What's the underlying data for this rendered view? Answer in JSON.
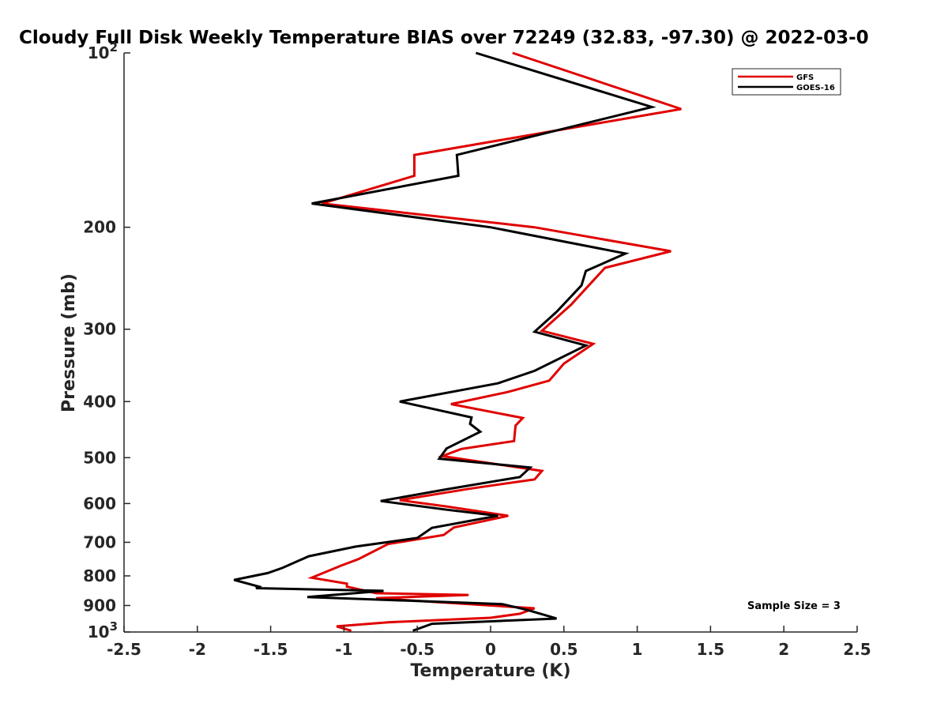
{
  "chart_data": {
    "type": "line",
    "title": "Cloudy Full Disk Weekly Temperature BIAS over 72249 (32.83, -97.30) @ 2022-03-0",
    "xlabel": "Temperature (K)",
    "ylabel": "Pressure (mb)",
    "xlim": [
      -2.5,
      2.5
    ],
    "ylim": [
      1000,
      100
    ],
    "y_scale": "log",
    "y_reversed": true,
    "x_ticks": [
      "-2.5",
      "-2",
      "-1.5",
      "-1",
      "-0.5",
      "0",
      "0.5",
      "1",
      "1.5",
      "2",
      "2.5"
    ],
    "y_ticks": [
      {
        "value": 100,
        "base": "10",
        "exp": "2"
      },
      {
        "value": 200,
        "base": "200",
        "exp": ""
      },
      {
        "value": 300,
        "base": "300",
        "exp": ""
      },
      {
        "value": 400,
        "base": "400",
        "exp": ""
      },
      {
        "value": 500,
        "base": "500",
        "exp": ""
      },
      {
        "value": 600,
        "base": "600",
        "exp": ""
      },
      {
        "value": 700,
        "base": "700",
        "exp": ""
      },
      {
        "value": 800,
        "base": "800",
        "exp": ""
      },
      {
        "value": 900,
        "base": "900",
        "exp": ""
      },
      {
        "value": 1000,
        "base": "10",
        "exp": "3"
      }
    ],
    "grid": false,
    "legend_position": "top-right",
    "annotation": "Sample Size = 3",
    "series": [
      {
        "name": "GFS",
        "color": "#e00000",
        "points": [
          [
            0.15,
            100
          ],
          [
            1.3,
            125
          ],
          [
            -0.52,
            150
          ],
          [
            -0.52,
            163
          ],
          [
            -1.15,
            182
          ],
          [
            0.3,
            200
          ],
          [
            1.23,
            220
          ],
          [
            0.78,
            235
          ],
          [
            0.67,
            252
          ],
          [
            0.55,
            272
          ],
          [
            0.35,
            302
          ],
          [
            0.7,
            318
          ],
          [
            0.5,
            344
          ],
          [
            0.4,
            368
          ],
          [
            0.12,
            385
          ],
          [
            -0.27,
            404
          ],
          [
            0.22,
            427
          ],
          [
            0.17,
            440
          ],
          [
            0.16,
            468
          ],
          [
            -0.2,
            483
          ],
          [
            -0.33,
            497
          ],
          [
            0.35,
            527
          ],
          [
            0.3,
            545
          ],
          [
            -0.15,
            566
          ],
          [
            -0.62,
            592
          ],
          [
            -0.3,
            607
          ],
          [
            0.12,
            630
          ],
          [
            -0.25,
            660
          ],
          [
            -0.32,
            680
          ],
          [
            -0.7,
            705
          ],
          [
            -0.9,
            748
          ],
          [
            -1.02,
            768
          ],
          [
            -1.22,
            806
          ],
          [
            -0.98,
            825
          ],
          [
            -0.98,
            835
          ],
          [
            -0.78,
            857
          ],
          [
            -0.15,
            863
          ],
          [
            -0.78,
            874
          ],
          [
            -0.42,
            886
          ],
          [
            0.3,
            910
          ],
          [
            0.2,
            930
          ],
          [
            0.0,
            945
          ],
          [
            -0.7,
            962
          ],
          [
            -1.05,
            978
          ],
          [
            -0.95,
            995
          ]
        ]
      },
      {
        "name": "GOES-16",
        "color": "#000000",
        "points": [
          [
            -0.1,
            100
          ],
          [
            1.1,
            124
          ],
          [
            -0.23,
            150
          ],
          [
            -0.22,
            163
          ],
          [
            -1.22,
            182
          ],
          [
            0.0,
            200
          ],
          [
            0.92,
            222
          ],
          [
            0.65,
            238
          ],
          [
            0.62,
            252
          ],
          [
            0.45,
            280
          ],
          [
            0.3,
            303
          ],
          [
            0.65,
            320
          ],
          [
            0.3,
            354
          ],
          [
            0.05,
            372
          ],
          [
            -0.62,
            400
          ],
          [
            -0.13,
            426
          ],
          [
            -0.14,
            437
          ],
          [
            -0.07,
            451
          ],
          [
            -0.3,
            482
          ],
          [
            -0.35,
            502
          ],
          [
            0.27,
            520
          ],
          [
            0.2,
            540
          ],
          [
            -0.3,
            567
          ],
          [
            -0.75,
            594
          ],
          [
            -0.3,
            615
          ],
          [
            0.05,
            630
          ],
          [
            -0.4,
            661
          ],
          [
            -0.5,
            688
          ],
          [
            -0.92,
            712
          ],
          [
            -1.24,
            740
          ],
          [
            -1.42,
            775
          ],
          [
            -1.52,
            791
          ],
          [
            -1.75,
            813
          ],
          [
            -1.58,
            835
          ],
          [
            -1.6,
            840
          ],
          [
            -0.73,
            849
          ],
          [
            -1.25,
            870
          ],
          [
            0.08,
            895
          ],
          [
            0.25,
            916
          ],
          [
            0.37,
            935
          ],
          [
            0.45,
            948
          ],
          [
            -0.4,
            968
          ],
          [
            -0.53,
            995
          ]
        ]
      }
    ]
  }
}
